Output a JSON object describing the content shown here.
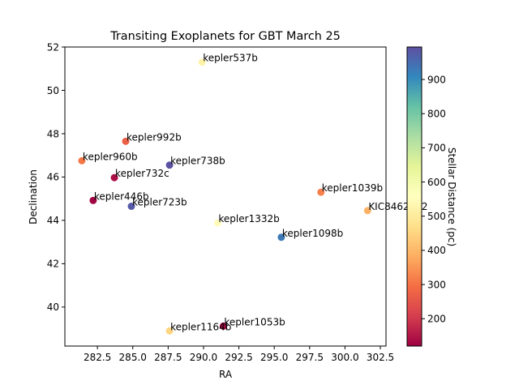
{
  "chart_data": {
    "type": "scatter",
    "title": "Transiting Exoplanets for GBT March 25",
    "xlabel": "RA",
    "ylabel": "Declination",
    "colorbar_label": "Stellar Distance (pc)",
    "colormap": "Spectral",
    "xlim": [
      280.2,
      302.9
    ],
    "ylim": [
      38.2,
      52.0
    ],
    "clim": [
      120,
      995
    ],
    "x_ticks": [
      "282.5",
      "285.0",
      "287.5",
      "290.0",
      "292.5",
      "295.0",
      "297.5",
      "300.0",
      "302.5"
    ],
    "y_ticks": [
      "40",
      "42",
      "44",
      "46",
      "48",
      "50",
      "52"
    ],
    "c_ticks": [
      "200",
      "300",
      "400",
      "500",
      "600",
      "700",
      "800",
      "900"
    ],
    "points": [
      {
        "label": "kepler537b",
        "x": 289.9,
        "y": 51.3,
        "distance": 520
      },
      {
        "label": "kepler992b",
        "x": 284.5,
        "y": 47.65,
        "distance": 270
      },
      {
        "label": "kepler960b",
        "x": 281.4,
        "y": 46.75,
        "distance": 310
      },
      {
        "label": "kepler738b",
        "x": 287.6,
        "y": 46.55,
        "distance": 990
      },
      {
        "label": "kepler732c",
        "x": 283.7,
        "y": 45.97,
        "distance": 140
      },
      {
        "label": "kepler1039b",
        "x": 298.3,
        "y": 45.3,
        "distance": 320
      },
      {
        "label": "kepler446b",
        "x": 282.2,
        "y": 44.92,
        "distance": 125
      },
      {
        "label": "kepler723b",
        "x": 284.9,
        "y": 44.65,
        "distance": 980
      },
      {
        "label": "KIC8462852",
        "x": 301.6,
        "y": 44.45,
        "distance": 390
      },
      {
        "label": "kepler1332b",
        "x": 291.0,
        "y": 43.88,
        "distance": 550
      },
      {
        "label": "kepler1098b",
        "x": 295.5,
        "y": 43.22,
        "distance": 930
      },
      {
        "label": "kepler1053b",
        "x": 291.4,
        "y": 39.12,
        "distance": 130
      },
      {
        "label": "kepler1164b",
        "x": 287.6,
        "y": 38.9,
        "distance": 450
      }
    ]
  }
}
